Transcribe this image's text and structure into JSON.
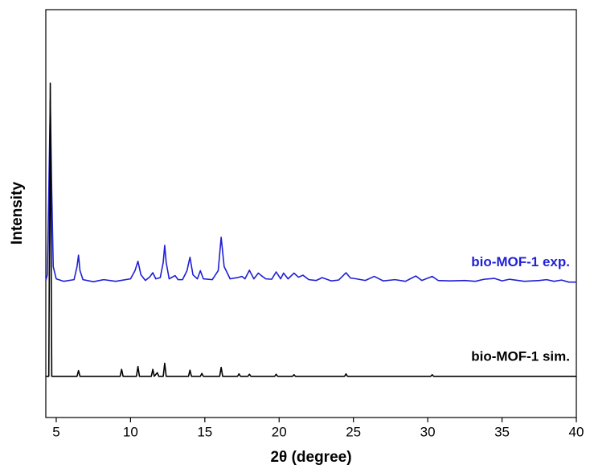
{
  "chart_data": {
    "type": "line",
    "xlabel": "2θ (degree)",
    "ylabel": "Intensity",
    "xlim": [
      4.3,
      40
    ],
    "xticks": [
      5,
      10,
      15,
      20,
      25,
      30,
      35,
      40
    ],
    "ylim": [
      0,
      100
    ],
    "series": [
      {
        "name": "bio-MOF-1 exp.",
        "color": "#1f1fd6",
        "x": [
          4.3,
          4.4,
          4.5,
          4.6,
          4.7,
          4.8,
          5.0,
          5.5,
          6.2,
          6.4,
          6.5,
          6.6,
          6.8,
          7.5,
          8.2,
          9.0,
          10.0,
          10.3,
          10.5,
          10.7,
          11.0,
          11.3,
          11.5,
          11.7,
          12.0,
          12.2,
          12.3,
          12.4,
          12.6,
          13.0,
          13.2,
          13.5,
          13.8,
          14.0,
          14.2,
          14.5,
          14.7,
          14.9,
          15.5,
          15.9,
          16.1,
          16.3,
          16.7,
          17.2,
          17.5,
          17.7,
          18.0,
          18.3,
          18.6,
          18.8,
          19.1,
          19.5,
          19.8,
          20.1,
          20.3,
          20.6,
          21.0,
          21.3,
          21.6,
          22.0,
          22.5,
          22.9,
          23.5,
          24.0,
          24.5,
          24.8,
          25.2,
          25.8,
          26.4,
          27.0,
          27.8,
          28.5,
          29.2,
          29.6,
          30.3,
          30.7,
          31.5,
          32.5,
          33.2,
          33.8,
          34.5,
          35.0,
          35.5,
          36.5,
          37.5,
          38.0,
          38.5,
          39.0,
          39.5,
          40.0
        ],
        "values": [
          33.6,
          35,
          55,
          77.7,
          55,
          37,
          34,
          33.4,
          33.8,
          37,
          39.8,
          36,
          33.8,
          33.3,
          33.8,
          33.4,
          34,
          36,
          38.3,
          35,
          33.6,
          34.5,
          35.5,
          34,
          34.3,
          38,
          42.2,
          38,
          34,
          34.8,
          33.8,
          33.8,
          36,
          39.3,
          35,
          34,
          36,
          34,
          33.8,
          36,
          44.2,
          37,
          34,
          34.3,
          34.6,
          34,
          36.1,
          34,
          35.4,
          34.8,
          34,
          33.9,
          35.7,
          34,
          35.4,
          34,
          35.4,
          34.4,
          34.9,
          33.8,
          33.6,
          34.3,
          33.5,
          33.7,
          35.5,
          34.2,
          34,
          33.6,
          34.6,
          33.5,
          33.8,
          33.4,
          34.7,
          33.6,
          34.6,
          33.6,
          33.5,
          33.6,
          33.4,
          33.9,
          34.1,
          33.5,
          33.9,
          33.4,
          33.6,
          33.8,
          33.4,
          33.7,
          33.2,
          33.2
        ]
      },
      {
        "name": "bio-MOF-1 sim.",
        "color": "#000000",
        "x": [
          4.3,
          4.5,
          4.6,
          4.7,
          6.4,
          6.5,
          6.6,
          9.3,
          9.4,
          9.5,
          10.4,
          10.5,
          10.6,
          11.4,
          11.5,
          11.6,
          11.8,
          11.9,
          12.2,
          12.3,
          12.4,
          13.9,
          14.0,
          14.1,
          14.7,
          14.8,
          14.9,
          16.0,
          16.1,
          16.2,
          17.2,
          17.3,
          17.4,
          17.9,
          18.0,
          18.1,
          19.7,
          19.8,
          19.9,
          20.9,
          21.0,
          21.1,
          24.4,
          24.5,
          24.6,
          30.2,
          30.3,
          30.4,
          40.0
        ],
        "values": [
          10.1,
          10.1,
          82,
          10.1,
          10.1,
          11.5,
          10.1,
          10.1,
          11.8,
          10.1,
          10.1,
          12.5,
          10.1,
          10.1,
          11.8,
          10.1,
          11.0,
          10.1,
          10.1,
          13.3,
          10.1,
          10.1,
          11.6,
          10.1,
          10.1,
          10.8,
          10.1,
          10.1,
          12.3,
          10.1,
          10.1,
          10.7,
          10.1,
          10.1,
          10.6,
          10.1,
          10.1,
          10.6,
          10.1,
          10.1,
          10.5,
          10.1,
          10.1,
          10.7,
          10.1,
          10.1,
          10.5,
          10.1,
          10.1
        ]
      }
    ]
  }
}
